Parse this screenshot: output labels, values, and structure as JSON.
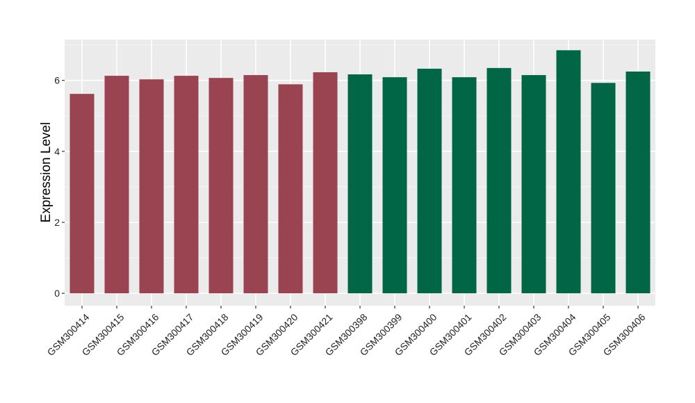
{
  "chart_data": {
    "type": "bar",
    "title": "",
    "xlabel": "",
    "ylabel": "Expression Level",
    "ylim": [
      -0.35,
      7.15
    ],
    "yticks": [
      0,
      2,
      4,
      6
    ],
    "grid": true,
    "categories": [
      "GSM300414",
      "GSM300415",
      "GSM300416",
      "GSM300417",
      "GSM300418",
      "GSM300419",
      "GSM300420",
      "GSM300421",
      "GSM300398",
      "GSM300399",
      "GSM300400",
      "GSM300401",
      "GSM300402",
      "GSM300403",
      "GSM300404",
      "GSM300405",
      "GSM300406"
    ],
    "values": [
      5.62,
      6.13,
      6.03,
      6.13,
      6.07,
      6.15,
      5.89,
      6.23,
      6.17,
      6.09,
      6.33,
      6.09,
      6.35,
      6.15,
      6.85,
      5.93,
      6.25
    ],
    "groups": [
      "a",
      "a",
      "a",
      "a",
      "a",
      "a",
      "a",
      "a",
      "b",
      "b",
      "b",
      "b",
      "b",
      "b",
      "b",
      "b",
      "b"
    ],
    "colors": {
      "a": "#9a4351",
      "b": "#006645",
      "panel": "#ebebeb",
      "grid_major": "#ffffff",
      "grid_minor": "#f5f5f5"
    }
  }
}
